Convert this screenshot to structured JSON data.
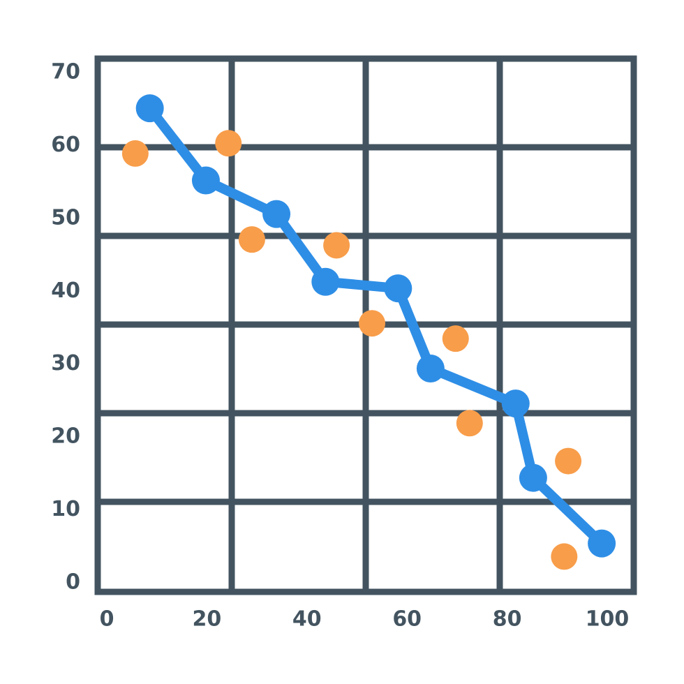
{
  "chart_data": {
    "type": "line",
    "xlim": [
      0,
      100
    ],
    "ylim": [
      0,
      70
    ],
    "xticks": [
      0,
      20,
      40,
      60,
      80,
      100
    ],
    "yticks": [
      0,
      10,
      20,
      30,
      40,
      50,
      60,
      70
    ],
    "series": [
      {
        "type": "line",
        "color": "#2e8ee6",
        "x": [
          8.6,
          19.8,
          33.9,
          43.7,
          58.2,
          64.7,
          81.7,
          85.2,
          98.9
        ],
        "values": [
          65.1,
          55.2,
          50.6,
          41.3,
          40.4,
          29.4,
          24.6,
          14.4,
          5.4
        ]
      },
      {
        "type": "scatter",
        "color": "#f89d4a",
        "x": [
          5.7,
          24.3,
          29.0,
          45.9,
          53.0,
          69.7,
          72.5,
          92.2,
          91.4
        ],
        "values": [
          58.9,
          60.3,
          47.1,
          46.3,
          35.6,
          33.5,
          21.9,
          16.7,
          3.6
        ]
      }
    ]
  }
}
